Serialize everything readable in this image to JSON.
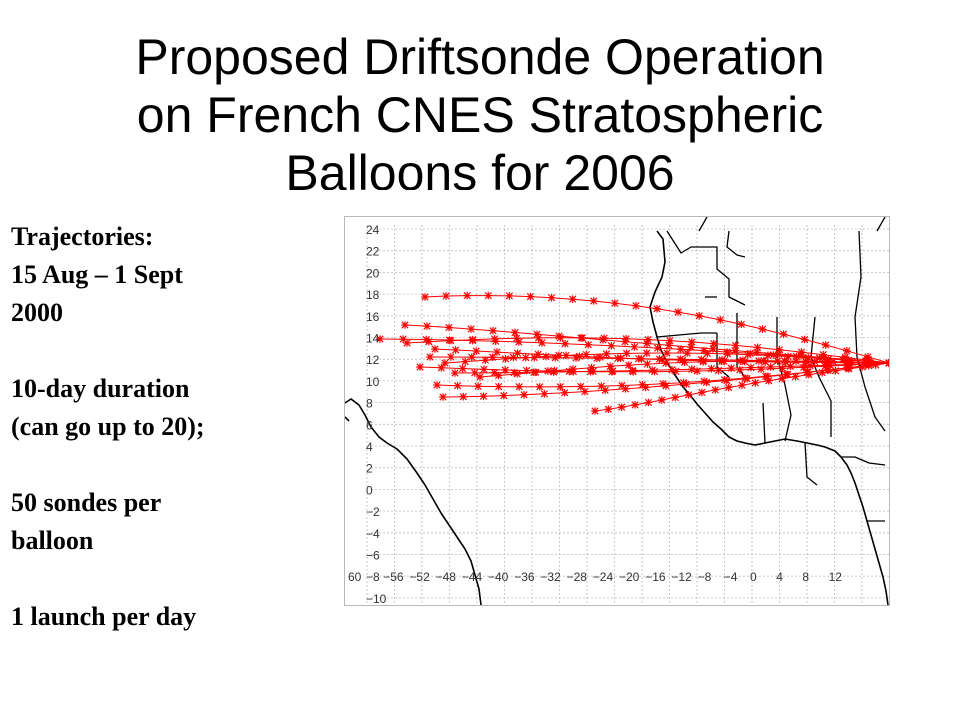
{
  "slide": {
    "title_lines": [
      "Proposed Driftsonde Operation",
      "on French CNES Stratospheric",
      "Balloons for 2006"
    ]
  },
  "notes": {
    "line1": "Trajectories:",
    "line2": "15  Aug – 1 Sept",
    "line3": "2000",
    "line4": "10-day duration",
    "line5": "(can go up to 20);",
    "line6": "50 sondes per",
    "line7": "balloon",
    "line8": "1 launch per day"
  },
  "map": {
    "y_ticks": [
      "24",
      "22",
      "20",
      "18",
      "16",
      "14",
      "12",
      "10",
      "8",
      "6",
      "4",
      "2",
      "0",
      "−2",
      "−4",
      "−6",
      "−8",
      "−10"
    ],
    "x_ticks": [
      "60",
      "−56",
      "−52",
      "−48",
      "−44",
      "−40",
      "−36",
      "−32",
      "−28",
      "−24",
      "−20",
      "−16",
      "−12",
      "−8",
      "−4",
      "0",
      "4",
      "8",
      "12"
    ],
    "colors": {
      "trajectory": "#ff0000",
      "coast": "#000000",
      "grid": "#bdbdbd"
    }
  }
}
